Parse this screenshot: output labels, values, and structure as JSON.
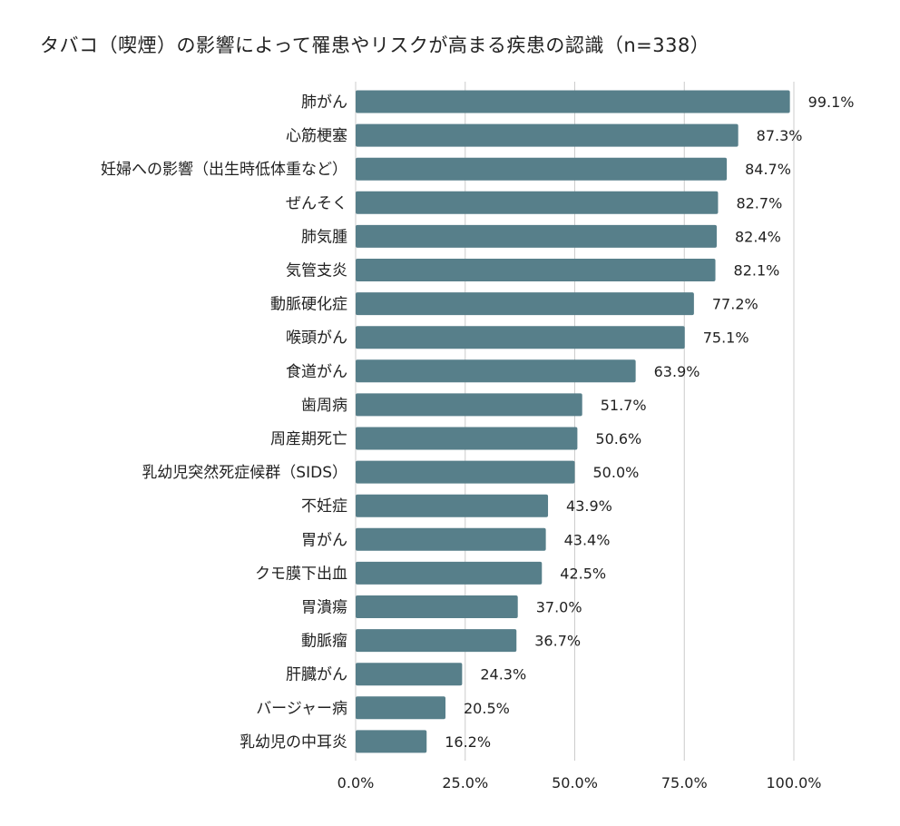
{
  "chart_data": {
    "type": "bar",
    "orientation": "horizontal",
    "title": "タバコ（喫煙）の影響によって罹患やリスクが高まる疾患の認識（n=338）",
    "categories": [
      "肺がん",
      "心筋梗塞",
      "妊婦への影響（出生時低体重など）",
      "ぜんそく",
      "肺気腫",
      "気管支炎",
      "動脈硬化症",
      "喉頭がん",
      "食道がん",
      "歯周病",
      "周産期死亡",
      "乳幼児突然死症候群（SIDS）",
      "不妊症",
      "胃がん",
      "クモ膜下出血",
      "胃潰瘍",
      "動脈瘤",
      "肝臓がん",
      "バージャー病",
      "乳幼児の中耳炎"
    ],
    "values": [
      99.1,
      87.3,
      84.7,
      82.7,
      82.4,
      82.1,
      77.2,
      75.1,
      63.9,
      51.7,
      50.6,
      50.0,
      43.9,
      43.4,
      42.5,
      37.0,
      36.7,
      24.3,
      20.5,
      16.2
    ],
    "value_labels": [
      "99.1%",
      "87.3%",
      "84.7%",
      "82.7%",
      "82.4%",
      "82.1%",
      "77.2%",
      "75.1%",
      "63.9%",
      "51.7%",
      "50.6%",
      "50.0%",
      "43.9%",
      "43.4%",
      "42.5%",
      "37.0%",
      "36.7%",
      "24.3%",
      "20.5%",
      "16.2%"
    ],
    "xlim": [
      0,
      100
    ],
    "ticks": [
      0,
      25,
      50,
      75,
      100
    ],
    "tick_labels": [
      "0.0%",
      "25.0%",
      "50.0%",
      "75.0%",
      "100.0%"
    ],
    "grid": true,
    "legend": "none",
    "bar_color": "#577f8a",
    "grid_color": "#cccccc"
  }
}
